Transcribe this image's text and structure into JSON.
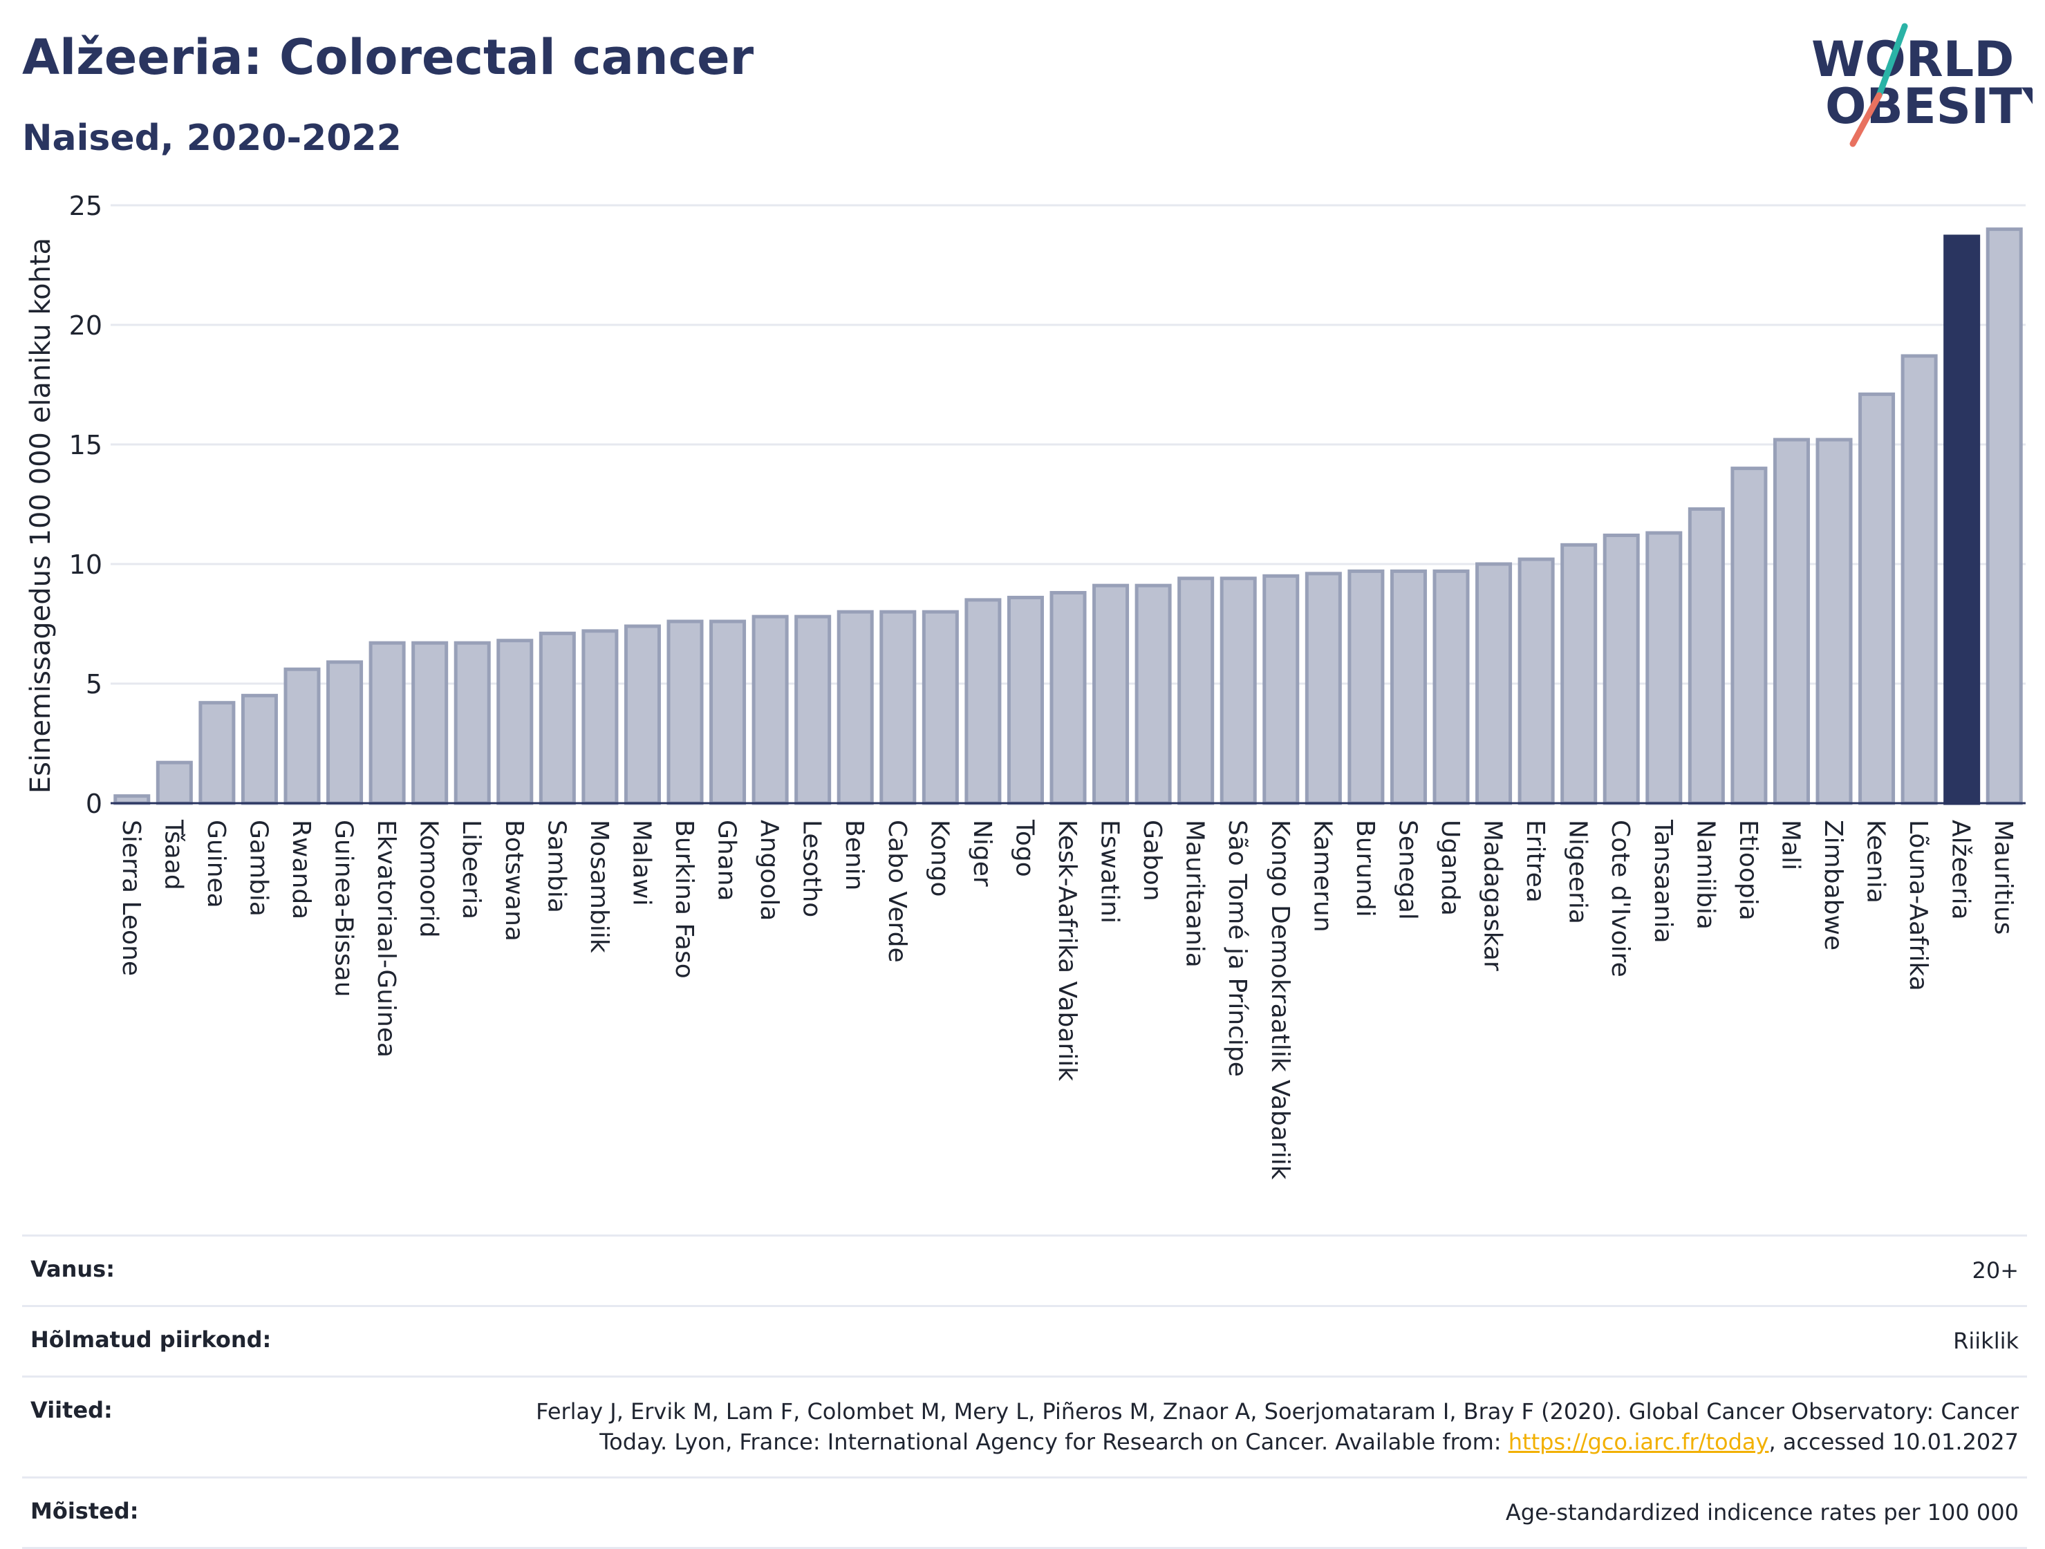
{
  "header": {
    "title": "Alžeeria: Colorectal cancer",
    "subtitle": "Naised, 2020-2022"
  },
  "logo": {
    "line1": "WORLD",
    "line2": "OBESITY"
  },
  "chart_data": {
    "type": "bar",
    "ylabel": "Esinemissagedus 100 000 elaniku kohta",
    "xlabel": "",
    "ylim": [
      0,
      25
    ],
    "yticks": [
      0,
      5,
      10,
      15,
      20,
      25
    ],
    "grid": true,
    "categories": [
      "Sierra Leone",
      "Tšaad",
      "Guinea",
      "Gambia",
      "Rwanda",
      "Guinea-Bissau",
      "Ekvatoriaal-Guinea",
      "Komoorid",
      "Libeeria",
      "Botswana",
      "Sambia",
      "Mosambiik",
      "Malawi",
      "Burkina Faso",
      "Ghana",
      "Angoola",
      "Lesotho",
      "Benin",
      "Cabo Verde",
      "Kongo",
      "Niger",
      "Togo",
      "Kesk-Aafrika Vabariik",
      "Eswatini",
      "Gabon",
      "Mauritaania",
      "São Tomé ja Príncipe",
      "Kongo Demokraatlik Vabariik",
      "Kamerun",
      "Burundi",
      "Senegal",
      "Uganda",
      "Madagaskar",
      "Eritrea",
      "Nigeeria",
      "Cote d'Ivoire",
      "Tansaania",
      "Namiibia",
      "Etioopia",
      "Mali",
      "Zimbabwe",
      "Keenia",
      "Lõuna-Aafrika",
      "Alžeeria",
      "Mauritius"
    ],
    "values": [
      0.3,
      1.7,
      4.2,
      4.5,
      5.6,
      5.9,
      6.7,
      6.7,
      6.7,
      6.8,
      7.1,
      7.2,
      7.4,
      7.6,
      7.6,
      7.8,
      7.8,
      8.0,
      8.0,
      8.0,
      8.5,
      8.6,
      8.8,
      9.1,
      9.1,
      9.4,
      9.4,
      9.5,
      9.6,
      9.7,
      9.7,
      9.7,
      10.0,
      10.2,
      10.8,
      11.2,
      11.3,
      12.3,
      14.0,
      15.2,
      15.2,
      17.1,
      18.7,
      23.7,
      24.0
    ],
    "highlight": "Alžeeria",
    "colors": {
      "bar": "#bcc1d1",
      "bar_border": "#98a0b8",
      "highlight": "#2a3560",
      "grid": "#e6e8ef",
      "axis": "#2a3560"
    }
  },
  "meta": [
    {
      "label": "Vanus:",
      "value": "20+"
    },
    {
      "label": "Hõlmatud piirkond:",
      "value": "Riiklik"
    },
    {
      "label": "Viited:",
      "value_before": "Ferlay J, Ervik M, Lam F, Colombet M, Mery L, Piñeros M, Znaor A, Soerjomataram I, Bray F (2020). Global Cancer Observatory: Cancer Today. Lyon, France: International Agency for Research on Cancer. Available from: ",
      "link": "https://gco.iarc.fr/today",
      "value_after": ", accessed 10.01.2027"
    },
    {
      "label": "Mõisted:",
      "value": "Age-standardized indicence rates per 100 000"
    }
  ]
}
